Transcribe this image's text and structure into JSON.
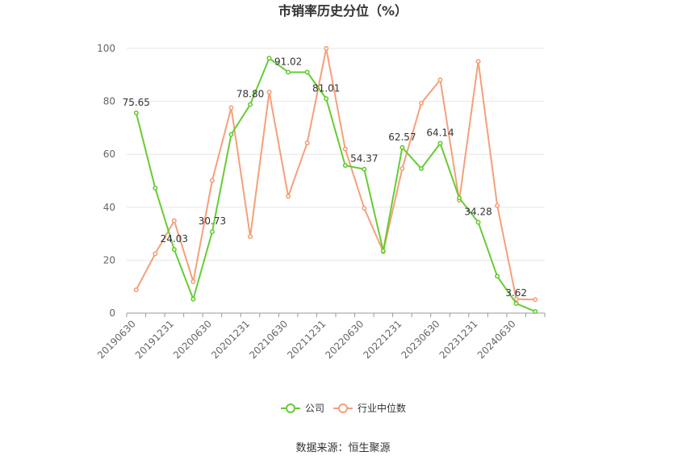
{
  "chart_data": {
    "type": "line",
    "title": "市销率历史分位（%）",
    "ylim": [
      0,
      100
    ],
    "yticks": [
      0,
      20,
      40,
      60,
      80,
      100
    ],
    "grid": true,
    "legend_position": "bottom-center",
    "x": [
      "20190630",
      "20190930",
      "20191231",
      "20200331",
      "20200630",
      "20200930",
      "20201231",
      "20210331",
      "20210630",
      "20210930",
      "20211231",
      "20220331",
      "20220630",
      "20220930",
      "20221231",
      "20230331",
      "20230630",
      "20230930",
      "20231231",
      "20240331",
      "20240630",
      "20240930"
    ],
    "xtick_labels": [
      "20190630",
      "20191231",
      "20200630",
      "20201231",
      "20210630",
      "20211231",
      "20220630",
      "20221231",
      "20230630",
      "20231231",
      "20240630"
    ],
    "series": [
      {
        "name": "公司",
        "color": "#66cc33",
        "values": [
          75.65,
          47.2,
          24.03,
          5.3,
          30.73,
          67.5,
          78.8,
          96.3,
          91.02,
          91.0,
          81.01,
          55.8,
          54.37,
          23.5,
          62.57,
          54.6,
          64.14,
          43.5,
          34.28,
          13.9,
          3.62,
          0.6
        ],
        "labels": {
          "0": "75.65",
          "2": "24.03",
          "4": "30.73",
          "6": "78.80",
          "8": "91.02",
          "10": "81.01",
          "12": "54.37",
          "14": "62.57",
          "16": "64.14",
          "18": "34.28",
          "20": "3.62"
        }
      },
      {
        "name": "行业中位数",
        "color": "#f4a07a",
        "values": [
          8.8,
          22.4,
          34.9,
          11.9,
          50.1,
          77.6,
          28.9,
          83.5,
          44.1,
          64.3,
          100.0,
          62.0,
          39.6,
          23.2,
          54.6,
          79.3,
          88.1,
          42.6,
          95.1,
          40.6,
          5.3,
          5.1
        ]
      }
    ]
  },
  "source_text": "数据来源：恒生聚源"
}
